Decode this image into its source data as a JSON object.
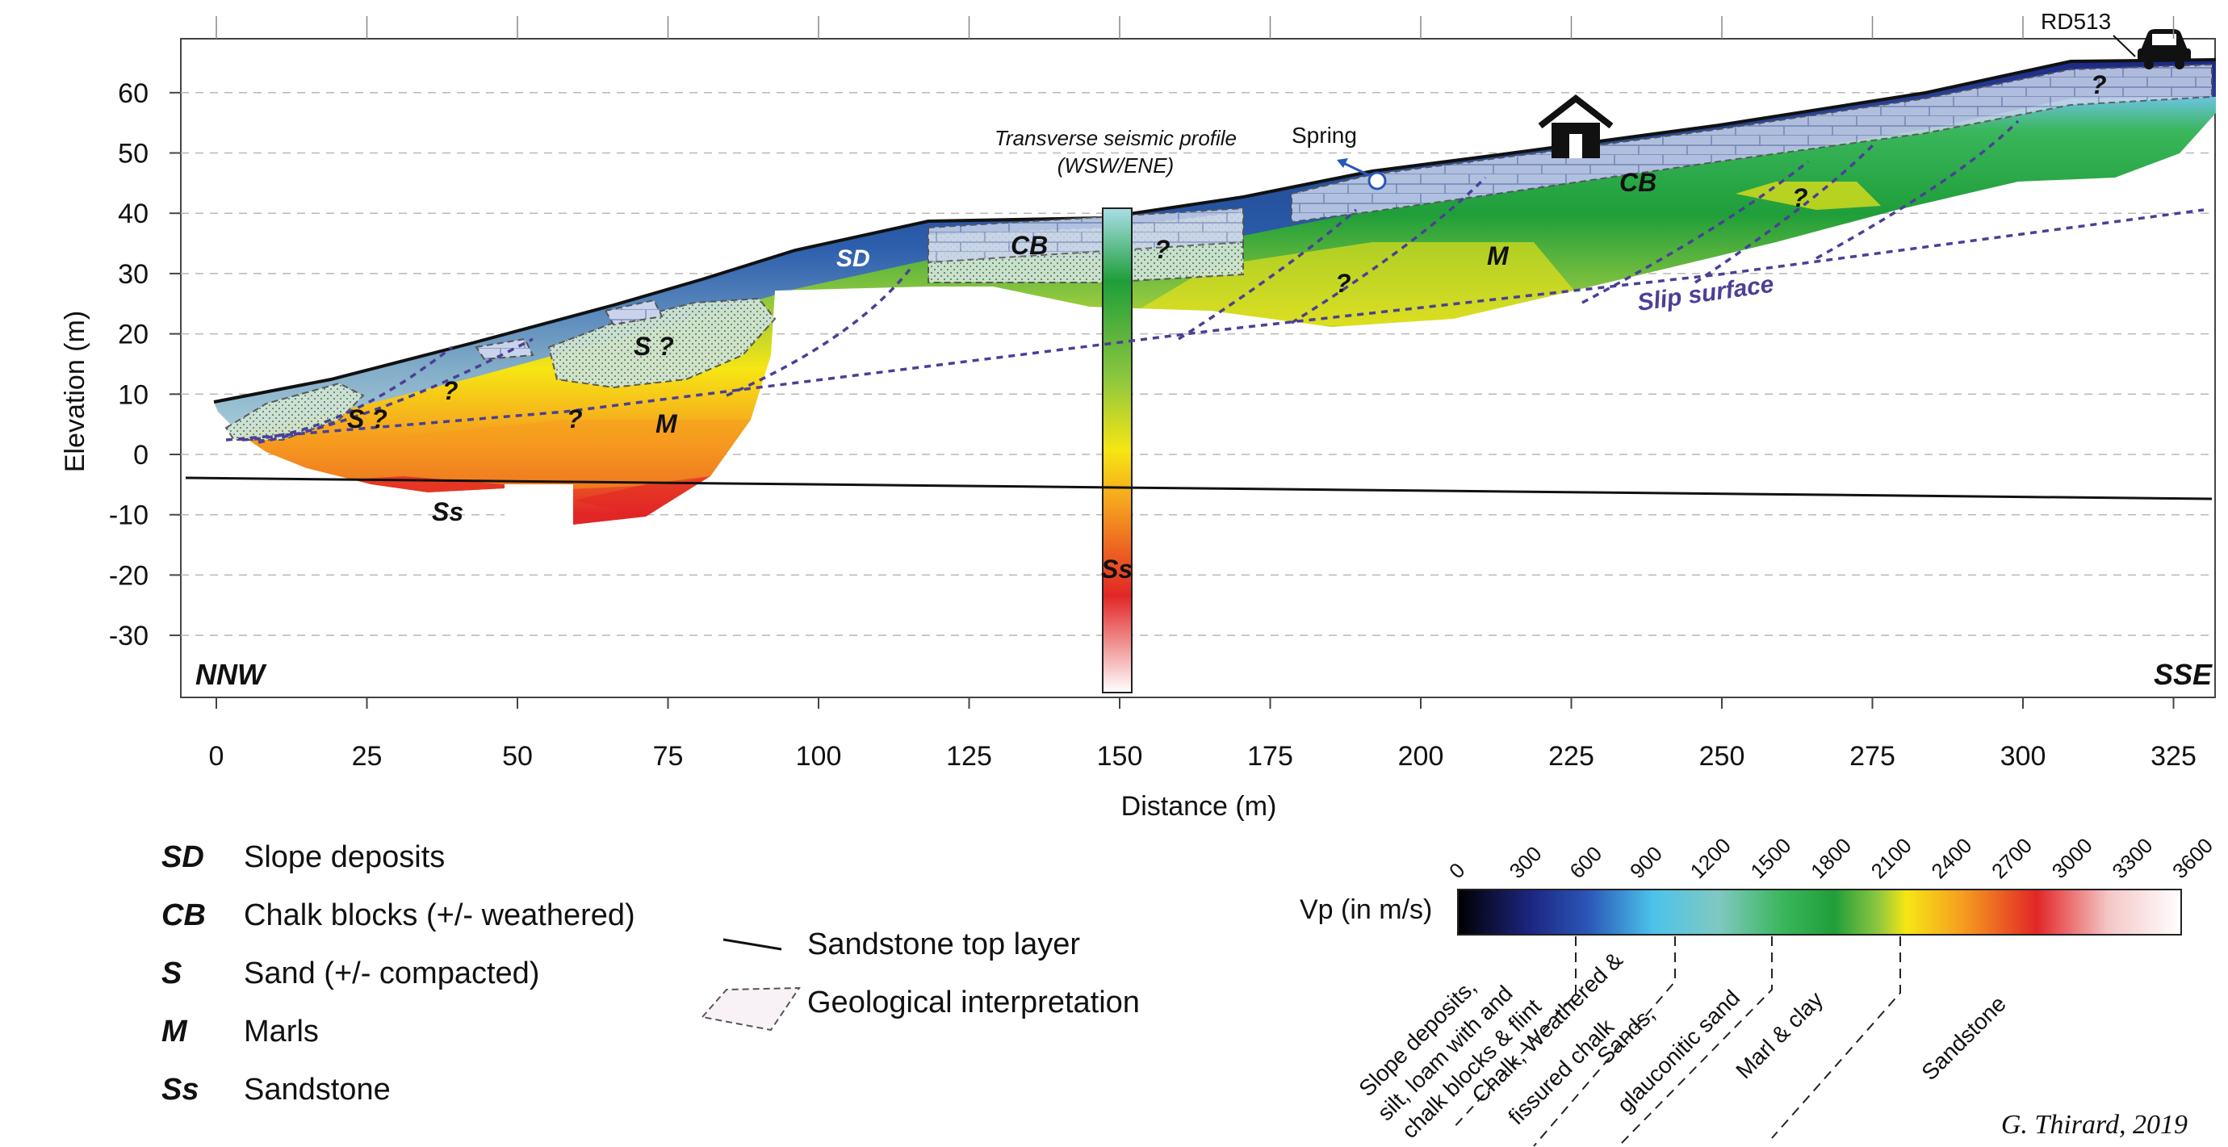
{
  "axes": {
    "ylabel": "Elevation (m)",
    "xlabel": "Distance (m)",
    "x_ticks": [
      "0",
      "25",
      "50",
      "75",
      "100",
      "125",
      "150",
      "175",
      "200",
      "225",
      "250",
      "275",
      "300",
      "325"
    ],
    "y_ticks": [
      "60",
      "50",
      "40",
      "30",
      "20",
      "10",
      "0",
      "-10",
      "-20",
      "-30"
    ],
    "x_range": [
      -5,
      334
    ],
    "y_range": [
      -40,
      70
    ]
  },
  "directions": {
    "left": "NNW",
    "right": "SSE"
  },
  "annotations": {
    "rd": "RD513",
    "spring": "Spring",
    "seismic_line1": "Transverse seismic profile",
    "seismic_line2": "(WSW/ENE)",
    "slip": "Slip surface",
    "sd": "SD",
    "cb1": "CB",
    "cb2": "CB",
    "q": "?",
    "s_q": "S ?",
    "m": "M",
    "ss": "Ss"
  },
  "legend": {
    "items": [
      {
        "abbr": "SD",
        "text": "Slope deposits"
      },
      {
        "abbr": "CB",
        "text": "Chalk blocks (+/- weathered)"
      },
      {
        "abbr": "S",
        "text": "Sand (+/- compacted)"
      },
      {
        "abbr": "M",
        "text": "Marls"
      },
      {
        "abbr": "Ss",
        "text": "Sandstone"
      }
    ],
    "line_item": "Sandstone top layer",
    "dashed_item": "Geological interpretation"
  },
  "colorbar": {
    "label": "Vp (in m/s)",
    "ticks": [
      "0",
      "300",
      "600",
      "900",
      "1200",
      "1500",
      "1800",
      "2100",
      "2400",
      "2700",
      "3000",
      "3300",
      "3600"
    ],
    "classes": [
      "Slope deposits,",
      "silt, loam with and",
      "chalk blocks & flint",
      "Chalk, Weathered &",
      "fissured chalk",
      "Sands,",
      "glauconitic sand",
      "Marl & clay",
      "Sandstone"
    ],
    "colors": [
      "#000000",
      "#1c2680",
      "#2a56b8",
      "#4cc3ea",
      "#7fc9c1",
      "#3ab65b",
      "#1f9e3a",
      "#8cc63f",
      "#f6e614",
      "#f59b1f",
      "#e22626",
      "#f5c7c7",
      "#ffffff"
    ]
  },
  "credit": "G. Thirard, 2019"
}
